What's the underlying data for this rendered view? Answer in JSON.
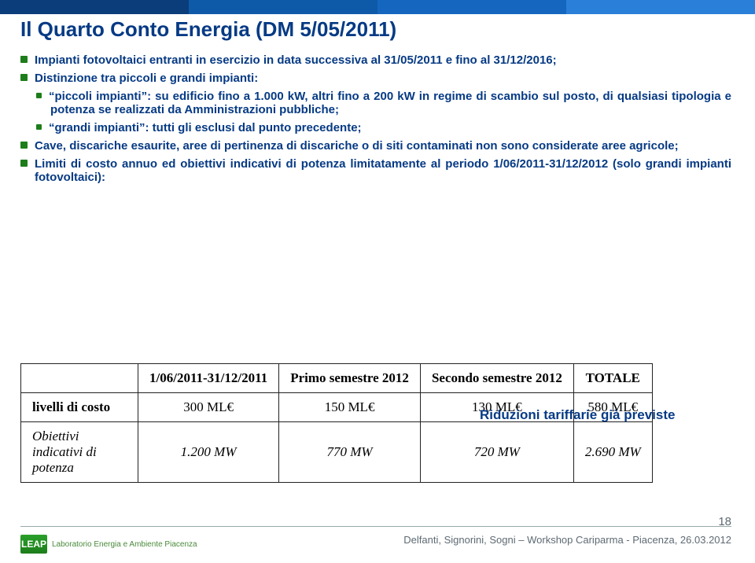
{
  "title": "Il Quarto Conto Energia (DM 5/05/2011)",
  "bullets": {
    "b1a": "Impianti fotovoltaici entranti in esercizio in data successiva al 31/05/2011 e fino al 31/12/2016;",
    "b1b": "Distinzione tra piccoli e grandi impianti:",
    "b2a": "“piccoli impianti”: su edificio fino a 1.000 kW, altri fino a 200 kW in regime di scambio sul posto, di qualsiasi tipologia e potenza se realizzati da Amministrazioni pubbliche;",
    "b2b": "“grandi impianti”: tutti gli esclusi dal punto precedente;",
    "b1c": "Cave, discariche esaurite, aree di pertinenza di discariche o di siti contaminati non sono considerate aree agricole;",
    "b1d": "Limiti di costo annuo ed obiettivi indicativi di potenza limitatamente al periodo 1/06/2011-31/12/2012 (solo grandi impianti fotovoltaici):"
  },
  "table": {
    "headers": [
      "1/06/2011-31/12/2011",
      "Primo semestre 2012",
      "Secondo semestre 2012",
      "TOTALE"
    ],
    "row1_label": "livelli di costo",
    "row1": [
      "300 ML€",
      "150 ML€",
      "130 ML€",
      "580 ML€"
    ],
    "row2_label": "Obiettivi indicativi di potenza",
    "row2": [
      "1.200 MW",
      "770 MW",
      "720 MW",
      "2.690 MW"
    ]
  },
  "note": "Riduzioni tariffarie già previste",
  "footer": "Delfanti, Signorini, Sogni – Workshop Cariparma - Piacenza, 26.03.2012",
  "pagenum": "18",
  "logo_abbr": "LEAP",
  "logo_text": "Laboratorio Energia e Ambiente Piacenza"
}
